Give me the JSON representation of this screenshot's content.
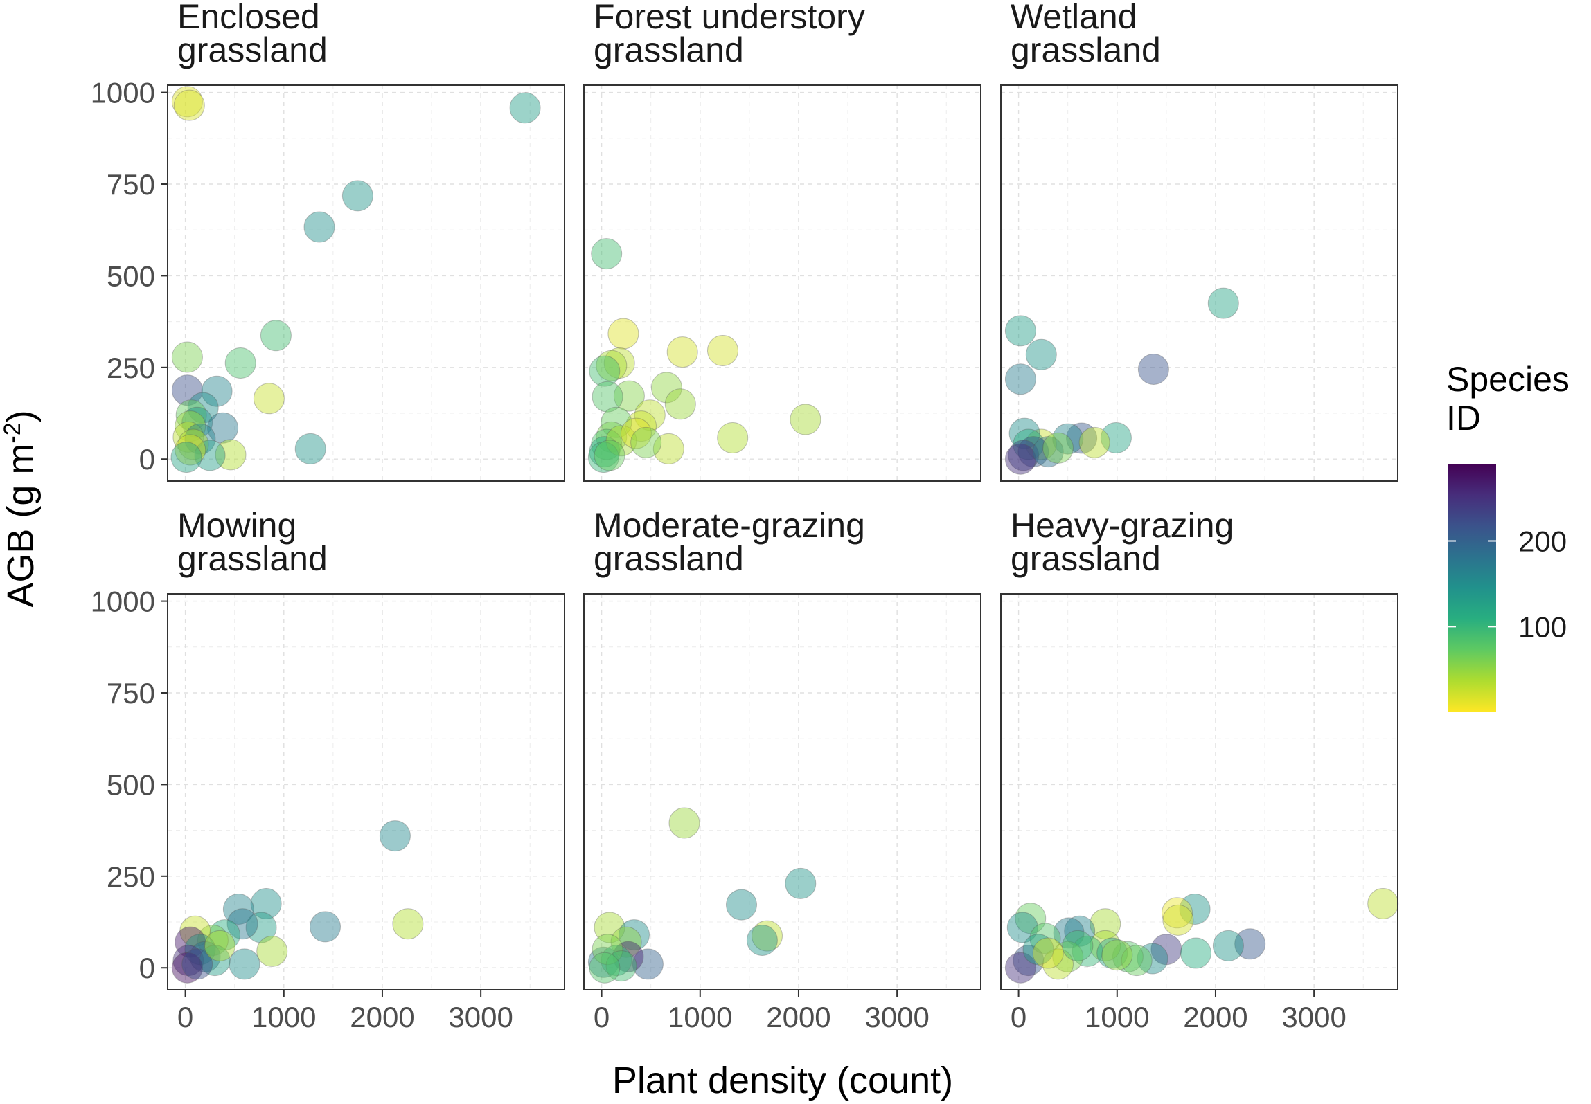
{
  "chart_data": {
    "type": "scatter",
    "xlabel": "Plant density (count)",
    "ylabel": "AGB (g m",
    "ylabel_sup": "-2",
    "ylabel_close": ")",
    "xlim": [
      -180,
      3850
    ],
    "ylim": [
      -60,
      1020
    ],
    "x_ticks": [
      0,
      1000,
      2000,
      3000
    ],
    "y_ticks": [
      0,
      250,
      500,
      750,
      1000
    ],
    "grid": true,
    "legend": {
      "title_line1": "Species",
      "title_line2": "ID",
      "placement": "right",
      "colormap": "viridis",
      "range": [
        1,
        290
      ],
      "ticks": [
        100,
        200
      ]
    },
    "panels": [
      {
        "title_line1": "Enclosed",
        "title_line2": "grassland",
        "points": [
          [
            20,
            975,
            15
          ],
          [
            40,
            965,
            18
          ],
          [
            3450,
            958,
            130
          ],
          [
            1750,
            718,
            140
          ],
          [
            1360,
            633,
            145
          ],
          [
            920,
            337,
            90
          ],
          [
            20,
            278,
            60
          ],
          [
            560,
            262,
            85
          ],
          [
            850,
            165,
            25
          ],
          [
            20,
            188,
            220
          ],
          [
            320,
            185,
            160
          ],
          [
            180,
            140,
            150
          ],
          [
            60,
            120,
            70
          ],
          [
            120,
            100,
            140
          ],
          [
            50,
            90,
            45
          ],
          [
            380,
            85,
            175
          ],
          [
            30,
            60,
            30
          ],
          [
            150,
            55,
            160
          ],
          [
            80,
            40,
            40
          ],
          [
            460,
            12,
            35
          ],
          [
            1270,
            28,
            140
          ],
          [
            250,
            10,
            130
          ],
          [
            50,
            25,
            20
          ],
          [
            10,
            5,
            120
          ]
        ]
      },
      {
        "title_line1": "Forest understory",
        "title_line2": "grassland",
        "points": [
          [
            50,
            560,
            90
          ],
          [
            220,
            342,
            15
          ],
          [
            820,
            292,
            20
          ],
          [
            1230,
            296,
            20
          ],
          [
            180,
            262,
            30
          ],
          [
            100,
            255,
            40
          ],
          [
            30,
            240,
            90
          ],
          [
            660,
            195,
            50
          ],
          [
            280,
            172,
            55
          ],
          [
            60,
            170,
            80
          ],
          [
            800,
            150,
            45
          ],
          [
            2070,
            108,
            40
          ],
          [
            490,
            120,
            30
          ],
          [
            400,
            90,
            25
          ],
          [
            1330,
            58,
            35
          ],
          [
            680,
            28,
            30
          ],
          [
            150,
            100,
            70
          ],
          [
            100,
            60,
            60
          ],
          [
            50,
            40,
            85
          ],
          [
            30,
            20,
            110
          ],
          [
            200,
            50,
            40
          ],
          [
            350,
            70,
            15
          ],
          [
            20,
            5,
            100
          ],
          [
            450,
            45,
            60
          ],
          [
            80,
            10,
            70
          ]
        ]
      },
      {
        "title_line1": "Wetland",
        "title_line2": "grassland",
        "points": [
          [
            2080,
            425,
            120
          ],
          [
            20,
            350,
            130
          ],
          [
            230,
            285,
            140
          ],
          [
            20,
            218,
            170
          ],
          [
            1370,
            245,
            215
          ],
          [
            990,
            58,
            120
          ],
          [
            640,
            57,
            210
          ],
          [
            500,
            55,
            160
          ],
          [
            770,
            45,
            30
          ],
          [
            230,
            40,
            25
          ],
          [
            60,
            70,
            150
          ],
          [
            100,
            40,
            110
          ],
          [
            150,
            20,
            210
          ],
          [
            50,
            10,
            230
          ],
          [
            20,
            0,
            250
          ],
          [
            300,
            20,
            180
          ],
          [
            400,
            30,
            60
          ]
        ]
      },
      {
        "title_line1": "Mowing",
        "title_line2": "grassland",
        "points": [
          [
            2130,
            360,
            155
          ],
          [
            2260,
            120,
            35
          ],
          [
            820,
            175,
            145
          ],
          [
            540,
            160,
            160
          ],
          [
            1420,
            112,
            170
          ],
          [
            770,
            110,
            130
          ],
          [
            580,
            120,
            175
          ],
          [
            880,
            45,
            40
          ],
          [
            600,
            10,
            150
          ],
          [
            400,
            90,
            110
          ],
          [
            280,
            75,
            60
          ],
          [
            100,
            100,
            25
          ],
          [
            50,
            70,
            270
          ],
          [
            150,
            50,
            140
          ],
          [
            200,
            30,
            180
          ],
          [
            30,
            20,
            250
          ],
          [
            300,
            20,
            130
          ],
          [
            20,
            0,
            280
          ],
          [
            120,
            10,
            220
          ],
          [
            350,
            60,
            40
          ]
        ]
      },
      {
        "title_line1": "Moderate-grazing",
        "title_line2": "grassland",
        "points": [
          [
            840,
            395,
            45
          ],
          [
            2020,
            230,
            140
          ],
          [
            1420,
            172,
            150
          ],
          [
            1680,
            87,
            30
          ],
          [
            1630,
            75,
            140
          ],
          [
            80,
            110,
            40
          ],
          [
            330,
            90,
            150
          ],
          [
            250,
            70,
            50
          ],
          [
            470,
            10,
            200
          ],
          [
            270,
            30,
            260
          ],
          [
            20,
            15,
            170
          ],
          [
            150,
            20,
            110
          ],
          [
            60,
            50,
            60
          ],
          [
            200,
            5,
            90
          ],
          [
            30,
            0,
            80
          ]
        ]
      },
      {
        "title_line1": "Heavy-grazing",
        "title_line2": "grassland",
        "points": [
          [
            3700,
            175,
            30
          ],
          [
            1790,
            160,
            140
          ],
          [
            1610,
            150,
            10
          ],
          [
            1620,
            130,
            20
          ],
          [
            2350,
            65,
            210
          ],
          [
            2130,
            60,
            140
          ],
          [
            1500,
            50,
            240
          ],
          [
            1360,
            25,
            150
          ],
          [
            1800,
            40,
            110
          ],
          [
            1110,
            30,
            80
          ],
          [
            880,
            120,
            40
          ],
          [
            620,
            100,
            160
          ],
          [
            510,
            95,
            170
          ],
          [
            880,
            60,
            40
          ],
          [
            120,
            135,
            70
          ],
          [
            40,
            110,
            150
          ],
          [
            270,
            80,
            80
          ],
          [
            700,
            45,
            100
          ],
          [
            500,
            30,
            60
          ],
          [
            400,
            10,
            30
          ],
          [
            100,
            20,
            210
          ],
          [
            20,
            0,
            250
          ],
          [
            200,
            50,
            130
          ],
          [
            950,
            40,
            120
          ],
          [
            1200,
            20,
            70
          ],
          [
            1000,
            35,
            50
          ],
          [
            300,
            40,
            20
          ],
          [
            600,
            60,
            90
          ]
        ]
      }
    ]
  }
}
